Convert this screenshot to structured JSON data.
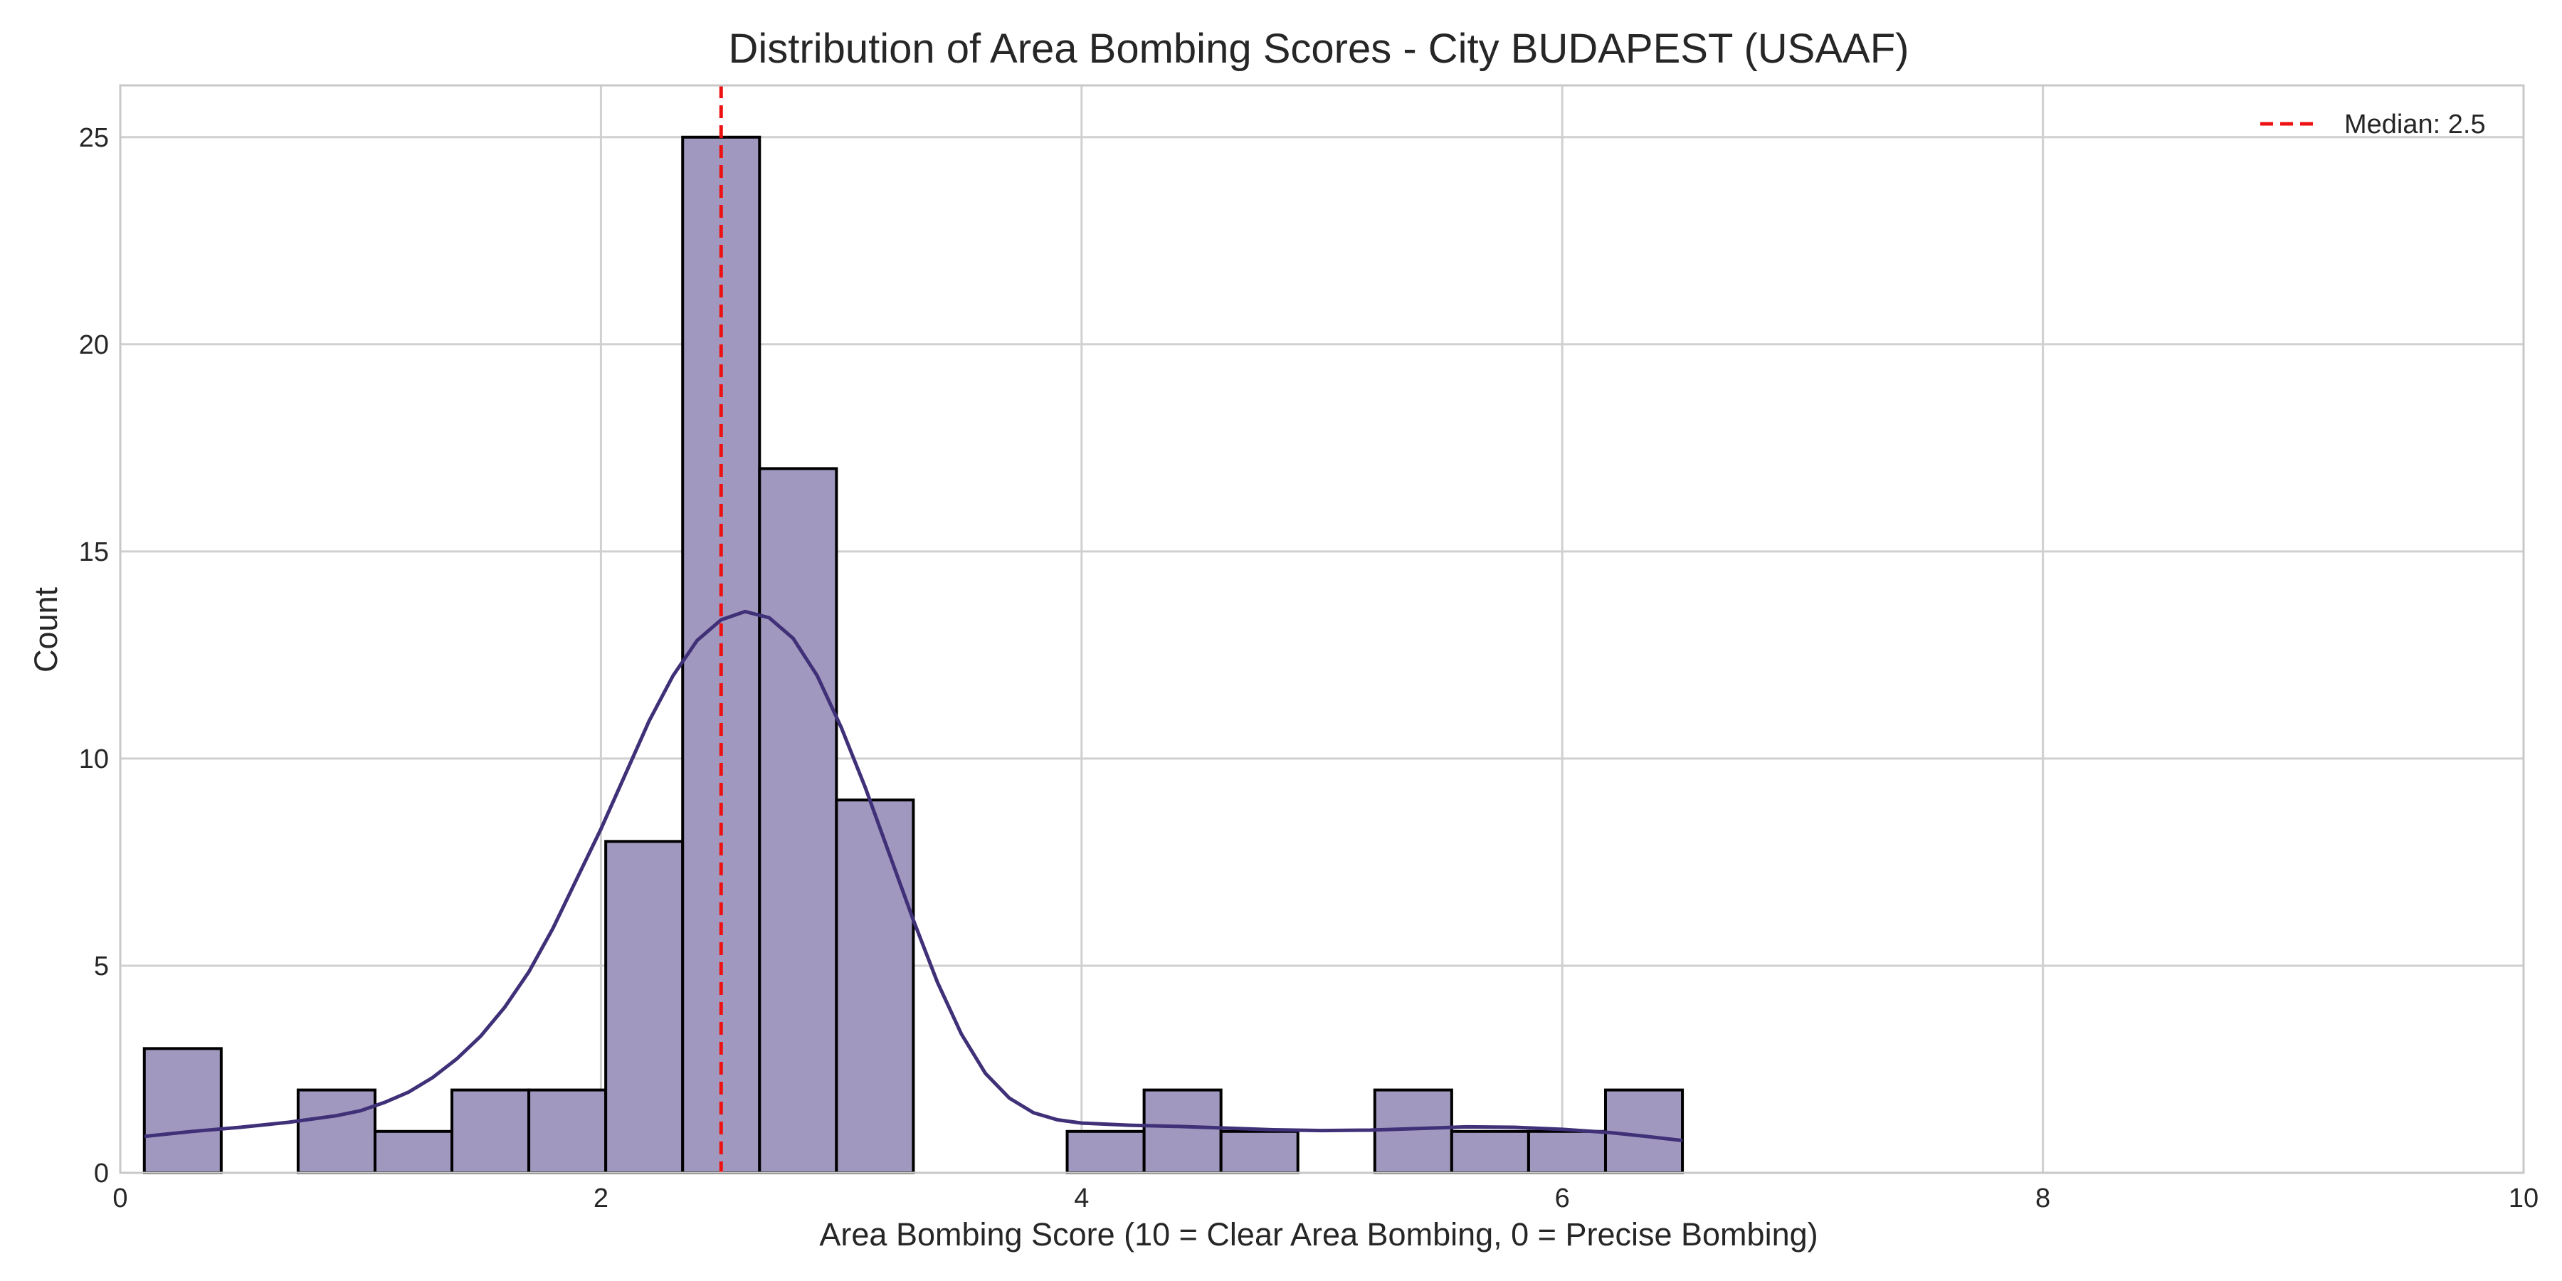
{
  "chart_data": {
    "type": "bar",
    "title": "Distribution of Area Bombing Scores - City BUDAPEST (USAAF)",
    "xlabel": "Area Bombing Score (10 = Clear Area Bombing, 0 = Precise Bombing)",
    "ylabel": "Count",
    "xlim": [
      0,
      10
    ],
    "ylim": [
      0,
      26.25
    ],
    "x_ticks": [
      0,
      2,
      4,
      6,
      8,
      10
    ],
    "y_ticks": [
      0,
      5,
      10,
      15,
      20,
      25
    ],
    "grid": true,
    "legend_position": "top-right",
    "bins": [
      {
        "x0": 0.1,
        "x1": 0.42,
        "count": 3
      },
      {
        "x0": 0.42,
        "x1": 0.74,
        "count": 0
      },
      {
        "x0": 0.74,
        "x1": 1.06,
        "count": 2
      },
      {
        "x0": 1.06,
        "x1": 1.38,
        "count": 1
      },
      {
        "x0": 1.38,
        "x1": 1.7,
        "count": 2
      },
      {
        "x0": 1.7,
        "x1": 2.02,
        "count": 2
      },
      {
        "x0": 2.02,
        "x1": 2.34,
        "count": 8
      },
      {
        "x0": 2.34,
        "x1": 2.66,
        "count": 25
      },
      {
        "x0": 2.66,
        "x1": 2.98,
        "count": 17
      },
      {
        "x0": 2.98,
        "x1": 3.3,
        "count": 9
      },
      {
        "x0": 3.3,
        "x1": 3.62,
        "count": 0
      },
      {
        "x0": 3.62,
        "x1": 3.94,
        "count": 0
      },
      {
        "x0": 3.94,
        "x1": 4.26,
        "count": 1
      },
      {
        "x0": 4.26,
        "x1": 4.58,
        "count": 2
      },
      {
        "x0": 4.58,
        "x1": 4.9,
        "count": 1
      },
      {
        "x0": 4.9,
        "x1": 5.22,
        "count": 0
      },
      {
        "x0": 5.22,
        "x1": 5.54,
        "count": 2
      },
      {
        "x0": 5.54,
        "x1": 5.86,
        "count": 1
      },
      {
        "x0": 5.86,
        "x1": 6.18,
        "count": 1
      },
      {
        "x0": 6.18,
        "x1": 6.5,
        "count": 2
      }
    ],
    "kde_curve": [
      [
        0.1,
        0.88
      ],
      [
        0.3,
        1.0
      ],
      [
        0.5,
        1.1
      ],
      [
        0.7,
        1.22
      ],
      [
        0.9,
        1.38
      ],
      [
        1.0,
        1.5
      ],
      [
        1.1,
        1.7
      ],
      [
        1.2,
        1.95
      ],
      [
        1.3,
        2.3
      ],
      [
        1.4,
        2.75
      ],
      [
        1.5,
        3.3
      ],
      [
        1.6,
        4.0
      ],
      [
        1.7,
        4.85
      ],
      [
        1.8,
        5.9
      ],
      [
        1.9,
        7.1
      ],
      [
        2.0,
        8.3
      ],
      [
        2.1,
        9.6
      ],
      [
        2.2,
        10.9
      ],
      [
        2.3,
        12.0
      ],
      [
        2.4,
        12.85
      ],
      [
        2.5,
        13.35
      ],
      [
        2.6,
        13.55
      ],
      [
        2.7,
        13.4
      ],
      [
        2.8,
        12.9
      ],
      [
        2.9,
        12.0
      ],
      [
        3.0,
        10.75
      ],
      [
        3.1,
        9.3
      ],
      [
        3.2,
        7.7
      ],
      [
        3.3,
        6.1
      ],
      [
        3.4,
        4.6
      ],
      [
        3.5,
        3.35
      ],
      [
        3.6,
        2.4
      ],
      [
        3.7,
        1.8
      ],
      [
        3.8,
        1.45
      ],
      [
        3.9,
        1.28
      ],
      [
        4.0,
        1.2
      ],
      [
        4.2,
        1.15
      ],
      [
        4.4,
        1.12
      ],
      [
        4.6,
        1.08
      ],
      [
        4.8,
        1.04
      ],
      [
        5.0,
        1.02
      ],
      [
        5.2,
        1.03
      ],
      [
        5.4,
        1.07
      ],
      [
        5.6,
        1.11
      ],
      [
        5.8,
        1.1
      ],
      [
        6.0,
        1.05
      ],
      [
        6.2,
        0.97
      ],
      [
        6.35,
        0.88
      ],
      [
        6.5,
        0.78
      ]
    ],
    "median": 2.5,
    "median_label": "Median: 2.5",
    "colors": {
      "bar_fill": "#a198bf",
      "bar_edge": "#000000",
      "kde_line": "#3f3078",
      "median_line": "#ee1111",
      "grid": "#d0d0d0",
      "axis": "#c8c8c8"
    }
  }
}
